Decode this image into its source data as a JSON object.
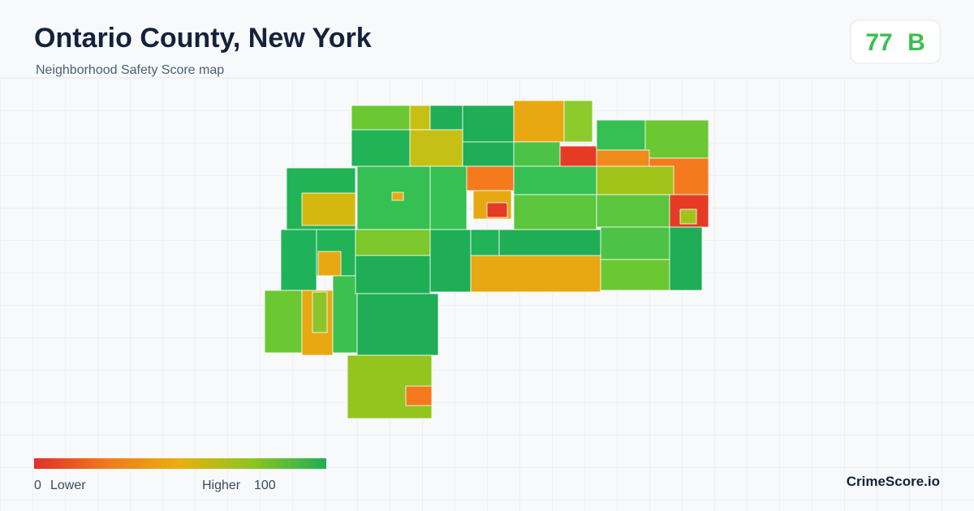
{
  "header": {
    "title": "Ontario County, New York",
    "subtitle": "Neighborhood Safety Score map"
  },
  "score": {
    "value": 77,
    "grade": "B"
  },
  "legend": {
    "min": 0,
    "min_label": "Lower",
    "max_label": "Higher",
    "max": 100
  },
  "brand": "CrimeScore.io"
}
